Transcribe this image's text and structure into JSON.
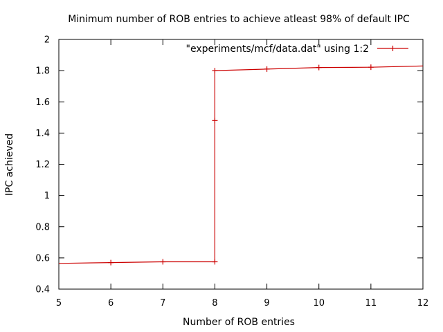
{
  "chart_data": {
    "type": "line",
    "title": "Minimum number of ROB entries to achieve atleast 98% of default IPC",
    "xlabel": "Number of ROB entries",
    "ylabel": "IPC achieved",
    "xlim": [
      5,
      12
    ],
    "ylim": [
      0.4,
      2
    ],
    "xticks": [
      5,
      6,
      7,
      8,
      9,
      10,
      11,
      12
    ],
    "yticks": [
      0.4,
      0.6,
      0.8,
      1,
      1.2,
      1.4,
      1.6,
      1.8,
      2
    ],
    "xtick_labels": [
      "5",
      "6",
      "7",
      "8",
      "9",
      "10",
      "11",
      "12"
    ],
    "ytick_labels": [
      "0.4",
      "0.6",
      "0.8",
      "1",
      "1.2",
      "1.4",
      "1.6",
      "1.8",
      "2"
    ],
    "grid": false,
    "legend": "top-right",
    "series": [
      {
        "name": "\"experiments/mcf/data.dat\" using 1:2",
        "color": "#cc0000",
        "style": "steps-with-points",
        "x": [
          5,
          6,
          7,
          8,
          8,
          8,
          9,
          10,
          11,
          12
        ],
        "y": [
          0.565,
          0.57,
          0.575,
          0.575,
          1.48,
          1.8,
          1.81,
          1.82,
          1.822,
          1.83
        ]
      }
    ]
  }
}
